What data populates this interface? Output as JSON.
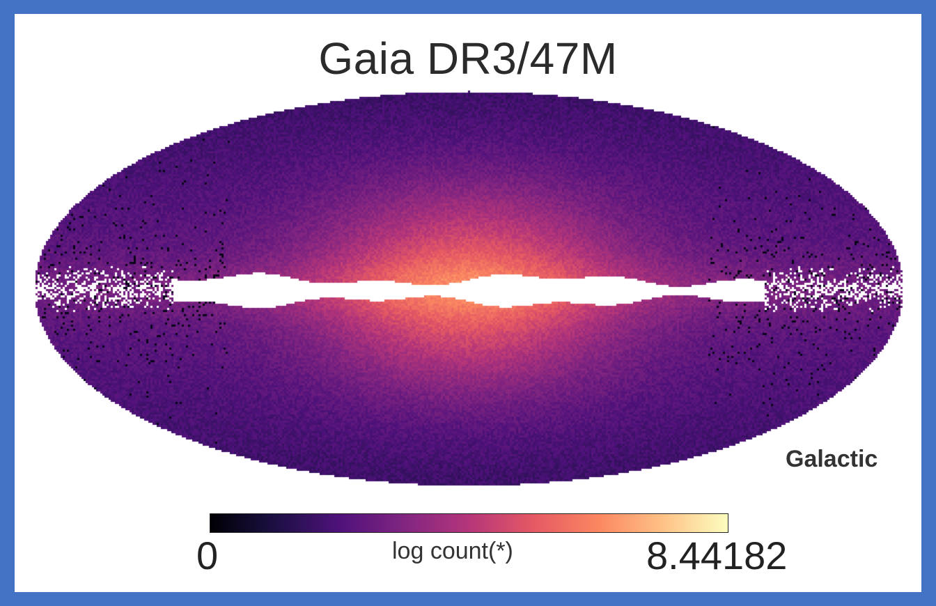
{
  "chart_data": {
    "type": "heatmap",
    "projection": "mollweide",
    "title": "Gaia DR3/47M",
    "coordinate_system": "Galactic",
    "colorbar": {
      "label": "log count(*)",
      "min": "0",
      "max": "8.44182",
      "colormap": "magma",
      "stops": [
        "#000004",
        "#1c1044",
        "#4f127b",
        "#812581",
        "#b5367a",
        "#e55964",
        "#fb8761",
        "#fec287",
        "#fcfdbf"
      ]
    },
    "features": {
      "galactic_plane_saturated": true,
      "bulge_brightest_near_center": true
    }
  }
}
